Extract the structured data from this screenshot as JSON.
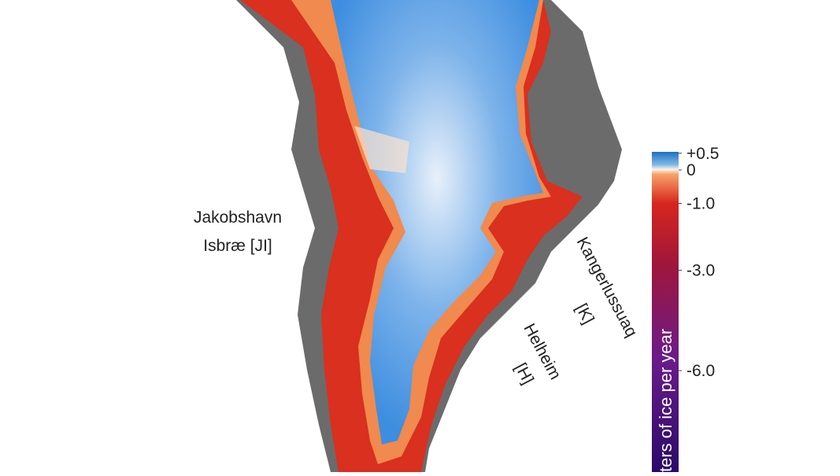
{
  "labels": {
    "jakobshavn": [
      "Jakobshavn",
      "Isbræ [JI]"
    ],
    "kangerlussuaq": [
      "Kangerlussuaq",
      "[K]"
    ],
    "helheim": [
      "Helheim",
      "[H]"
    ]
  },
  "colorbar": {
    "label": "ters of ice per year",
    "ticks": [
      {
        "value": 0.5,
        "label": "+0.5"
      },
      0,
      {
        "value": -1.0,
        "label": "-1.0"
      },
      {
        "value": -3.0,
        "label": "-3.0"
      },
      {
        "value": -6.0,
        "label": "-6.0"
      }
    ]
  }
}
